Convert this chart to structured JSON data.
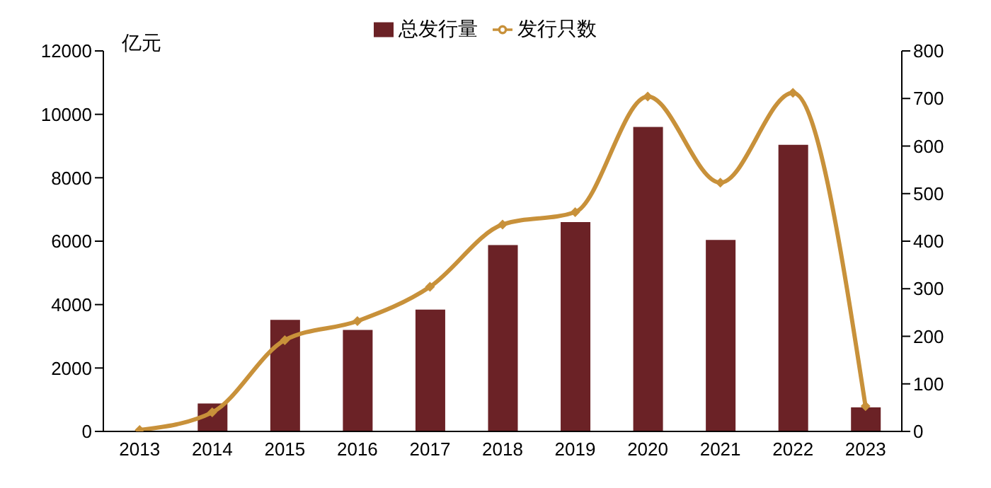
{
  "chart_data": {
    "type": "bar",
    "ylabel": "亿元",
    "categories": [
      "2013",
      "2014",
      "2015",
      "2016",
      "2017",
      "2018",
      "2019",
      "2020",
      "2021",
      "2022",
      "2023"
    ],
    "series": [
      {
        "name": "总发行量",
        "color": "#6b2226",
        "values": [
          20,
          880,
          3520,
          3200,
          3840,
          5880,
          6600,
          9600,
          6040,
          9040,
          760
        ]
      },
      {
        "name": "发行只数",
        "type": "line",
        "axis": "y2",
        "color": "#c8913a",
        "values": [
          3,
          40,
          192,
          232,
          304,
          435,
          461,
          704,
          523,
          712,
          53
        ]
      }
    ],
    "ylim": [
      0,
      12000
    ],
    "yticks": [
      0,
      2000,
      4000,
      6000,
      8000,
      10000,
      12000
    ],
    "y2lim": [
      0,
      800
    ],
    "y2ticks": [
      0,
      100,
      200,
      300,
      400,
      500,
      600,
      700,
      800
    ],
    "grid": false,
    "legend": "top",
    "marker": "diamond",
    "line_style": "solid"
  }
}
